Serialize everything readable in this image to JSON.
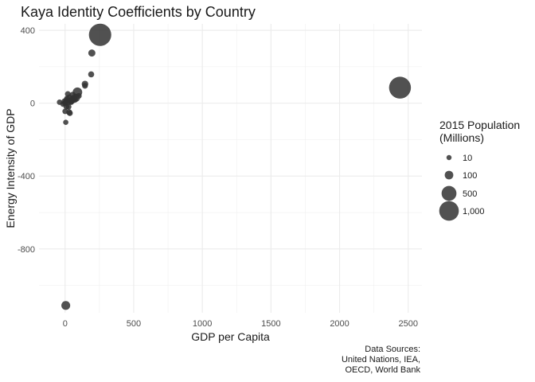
{
  "chart_data": {
    "type": "scatter",
    "title": "Kaya Identity Coefficients by Country",
    "xlabel": "GDP per Capita",
    "ylabel": "Energy Intensity of GDP",
    "xlim": [
      -190,
      2600
    ],
    "ylim": [
      -1150,
      435
    ],
    "xticks": [
      0,
      500,
      1000,
      1500,
      2000,
      2500
    ],
    "xtick_labels": [
      "0",
      "500",
      "1000",
      "1500",
      "2000",
      "2500"
    ],
    "yticks": [
      400,
      0,
      -400,
      -800
    ],
    "ytick_labels": [
      "400",
      "0",
      "-400",
      "-800"
    ],
    "grid": true,
    "legend": {
      "title": [
        "2015 Population",
        "(Millions)"
      ],
      "placement": "right",
      "entries": [
        {
          "label": "10",
          "population": 10
        },
        {
          "label": "100",
          "population": 100
        },
        {
          "label": "500",
          "population": 500
        },
        {
          "label": "1,000",
          "population": 1000
        }
      ]
    },
    "point_color": "#333333",
    "point_opacity": 0.85,
    "points": [
      {
        "x": 255,
        "y": 375,
        "pop": 1370
      },
      {
        "x": 2440,
        "y": 85,
        "pop": 1300
      },
      {
        "x": 195,
        "y": 275,
        "pop": 50
      },
      {
        "x": 190,
        "y": 158,
        "pop": 25
      },
      {
        "x": 145,
        "y": 105,
        "pop": 35
      },
      {
        "x": 145,
        "y": 95,
        "pop": 20
      },
      {
        "x": 90,
        "y": 60,
        "pop": 140
      },
      {
        "x": 80,
        "y": 30,
        "pop": 80
      },
      {
        "x": 70,
        "y": 20,
        "pop": 40
      },
      {
        "x": 60,
        "y": 25,
        "pop": 60
      },
      {
        "x": 50,
        "y": 15,
        "pop": 45
      },
      {
        "x": 40,
        "y": 10,
        "pop": 35
      },
      {
        "x": 30,
        "y": 30,
        "pop": 30
      },
      {
        "x": 20,
        "y": 50,
        "pop": 20
      },
      {
        "x": 15,
        "y": 25,
        "pop": 25
      },
      {
        "x": 10,
        "y": 15,
        "pop": 35
      },
      {
        "x": 5,
        "y": 5,
        "pop": 15
      },
      {
        "x": 0,
        "y": 0,
        "pop": 25
      },
      {
        "x": -5,
        "y": 10,
        "pop": 20
      },
      {
        "x": -15,
        "y": -5,
        "pop": 15
      },
      {
        "x": -40,
        "y": 5,
        "pop": 15
      },
      {
        "x": 25,
        "y": -20,
        "pop": 20
      },
      {
        "x": 30,
        "y": -50,
        "pop": 25
      },
      {
        "x": 35,
        "y": -55,
        "pop": 20
      },
      {
        "x": 0,
        "y": -45,
        "pop": 15
      },
      {
        "x": 5,
        "y": -105,
        "pop": 12
      },
      {
        "x": 55,
        "y": 45,
        "pop": 30
      },
      {
        "x": 100,
        "y": 40,
        "pop": 20
      },
      {
        "x": 45,
        "y": 5,
        "pop": 15
      },
      {
        "x": 20,
        "y": 5,
        "pop": 30
      },
      {
        "x": 10,
        "y": -20,
        "pop": 20
      },
      {
        "x": 5,
        "y": -1110,
        "pop": 110
      }
    ]
  },
  "caption": [
    "Data Sources:",
    "United Nations, IEA,",
    "OECD, World Bank"
  ]
}
